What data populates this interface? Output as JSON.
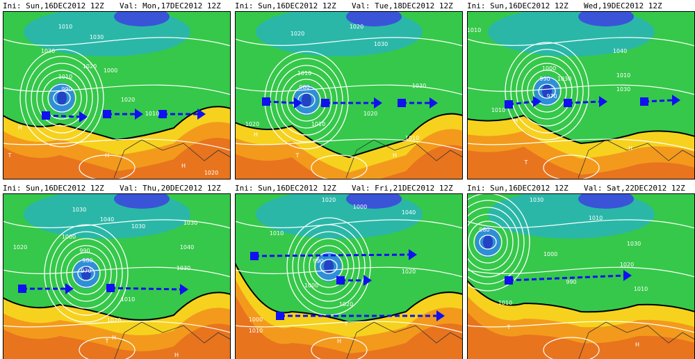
{
  "panels": [
    {
      "ini": "Ini: Sun,16DEC2012 12Z",
      "val": "Val: Mon,17DEC2012 12Z",
      "labels": [
        "1010",
        "1030",
        "1030",
        "1020",
        "1000",
        "1010",
        "990",
        "1010",
        "1020",
        "H",
        "T",
        "H",
        "H",
        "1020"
      ]
    },
    {
      "ini": "Ini: Sun,16DEC2012 12Z",
      "val": "Val: Tue,18DEC2012 12Z",
      "labels": [
        "1020",
        "1020",
        "1030",
        "1010",
        "980",
        "1030",
        "1020",
        "1010",
        "1020",
        "H",
        "1010",
        "H",
        "T"
      ]
    },
    {
      "ini": "Ini: Sun,16DEC2012 12Z",
      "val": "Wed,19DEC2012 12Z",
      "labels": [
        "1010",
        "1000",
        "990",
        "970",
        "1010",
        "1030",
        "1040",
        "1010",
        "1030",
        "H",
        "T",
        "H"
      ]
    },
    {
      "ini": "Ini: Sun,16DEC2012 12Z",
      "val": "Val: Thu,20DEC2012 12Z",
      "labels": [
        "1030",
        "1040",
        "1030",
        "1000",
        "990",
        "980",
        "970",
        "1020",
        "1030",
        "1040",
        "1030",
        "1010",
        "1020",
        "T",
        "H",
        "H"
      ]
    },
    {
      "ini": "Ini: Sun,16DEC2012 12Z",
      "val": "Val: Fri,21DEC2012 12Z",
      "labels": [
        "1020",
        "1000",
        "1040",
        "1010",
        "990",
        "1000",
        "1020",
        "1020",
        "1000",
        "1010",
        "T",
        "H"
      ]
    },
    {
      "ini": "Ini: Sun,16DEC2012 12Z",
      "val": "Val: Sat,22DEC2012 12Z",
      "labels": [
        "1030",
        "980",
        "1010",
        "1000",
        "990",
        "1030",
        "1020",
        "1010",
        "1010",
        "T",
        "H"
      ]
    }
  ]
}
